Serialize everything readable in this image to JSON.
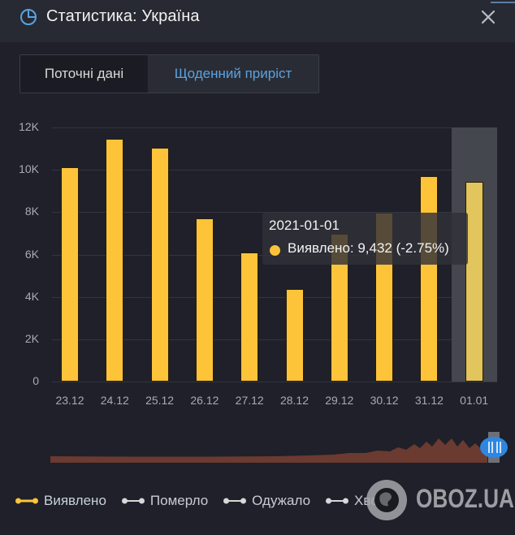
{
  "header": {
    "title": "Статистика: Україна",
    "icon": "pie-chart-icon",
    "close_icon": "close-icon"
  },
  "tabs": [
    {
      "label": "Поточні дані",
      "active": false
    },
    {
      "label": "Щоденний приріст",
      "active": true
    }
  ],
  "colors": {
    "accent": "#5aa3e0",
    "bar": "#fdc43a",
    "bar_active": "#e2c55c",
    "navigator": "#6b3a30",
    "handle": "#2f86e0",
    "background": "#1f2029",
    "header": "#272a33"
  },
  "chart_data": {
    "type": "bar",
    "title": "",
    "xlabel": "",
    "ylabel": "",
    "categories": [
      "23.12",
      "24.12",
      "25.12",
      "26.12",
      "27.12",
      "28.12",
      "29.12",
      "30.12",
      "31.12",
      "01.01"
    ],
    "series": [
      {
        "name": "Виявлено",
        "values": [
          10120,
          11460,
          11040,
          7710,
          6100,
          4370,
          6980,
          7980,
          9700,
          9432
        ]
      }
    ],
    "y_ticks": [
      "0",
      "2K",
      "4K",
      "6K",
      "8K",
      "10K",
      "12K"
    ],
    "ylim": [
      0,
      12000
    ],
    "grid": true,
    "highlighted_index": 9,
    "legend_position": "bottom"
  },
  "tooltip": {
    "date": "2021-01-01",
    "series_label": "Виявлено",
    "value": "9,432",
    "change": "(-2.75%)",
    "text": "Виявлено: 9,432 (-2.75%)"
  },
  "legend": [
    {
      "label": "Виявлено",
      "active": true,
      "color": "#fdc43a"
    },
    {
      "label": "Померло",
      "active": false,
      "color": "#d8d8d8"
    },
    {
      "label": "Одужало",
      "active": false,
      "color": "#d8d8d8"
    },
    {
      "label": "Хворіє",
      "active": false,
      "color": "#d8d8d8"
    }
  ],
  "watermark": {
    "text": "OBOZ.UA"
  }
}
